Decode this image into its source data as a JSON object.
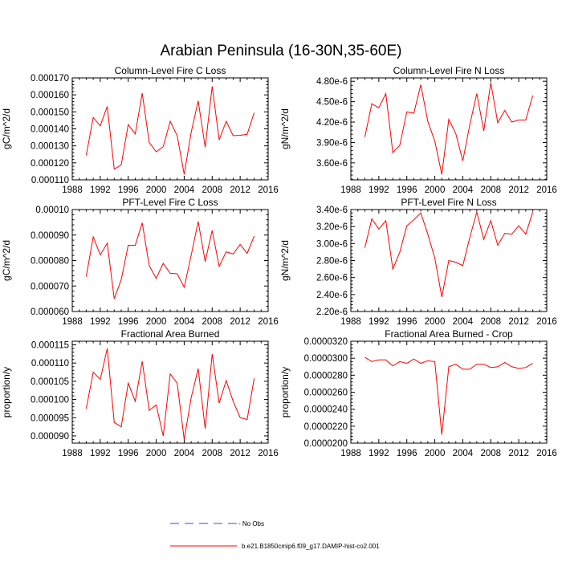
{
  "figure": {
    "title": "Arabian Peninsula (16-30N,35-60E)"
  },
  "legend": {
    "items": [
      {
        "label": "- No Obs",
        "color": "#4444cc",
        "style": "dashed"
      },
      {
        "label": "b.e21.B1850cmip6.f09_g17.DAMIP-hist-co2.001",
        "color": "#ff0000",
        "style": "solid"
      }
    ]
  },
  "chart_data": [
    {
      "type": "line",
      "title": "Column-Level Fire C Loss",
      "ylabel": "gC/m^2/d",
      "xlim": [
        1988,
        2016
      ],
      "xticks": [
        1988,
        1992,
        1996,
        2000,
        2004,
        2008,
        2012,
        2016
      ],
      "ylim": [
        0.00011,
        0.00017
      ],
      "yticks": [
        0.00011,
        0.00012,
        0.00013,
        0.00014,
        0.00015,
        0.00016,
        0.00017
      ],
      "ytick_labels": [
        "0.000110",
        "0.000120",
        "0.000130",
        "0.000140",
        "0.000150",
        "0.000160",
        "0.000170"
      ],
      "series": [
        {
          "color": "#ff0000",
          "x": [
            1990,
            1991,
            1992,
            1993,
            1994,
            1995,
            1996,
            1997,
            1998,
            1999,
            2000,
            2001,
            2002,
            2003,
            2004,
            2005,
            2006,
            2007,
            2008,
            2009,
            2010,
            2011,
            2012,
            2013,
            2014
          ],
          "y": [
            0.0001245,
            0.0001467,
            0.0001418,
            0.0001532,
            0.0001163,
            0.0001188,
            0.0001425,
            0.000137,
            0.000161,
            0.000132,
            0.0001265,
            0.0001295,
            0.0001445,
            0.000136,
            0.0001132,
            0.000138,
            0.0001565,
            0.0001292,
            0.000165,
            0.0001335,
            0.0001445,
            0.000136,
            0.0001362,
            0.0001368,
            0.0001495
          ]
        }
      ]
    },
    {
      "type": "line",
      "title": "Column-Level Fire N Loss",
      "ylabel": "gN/m^2/d",
      "xlim": [
        1988,
        2016
      ],
      "xticks": [
        1988,
        1992,
        1996,
        2000,
        2004,
        2008,
        2012,
        2016
      ],
      "ylim": [
        3.35e-06,
        4.85e-06
      ],
      "yticks": [
        3.6e-06,
        3.9e-06,
        4.2e-06,
        4.5e-06,
        4.8e-06
      ],
      "ytick_labels": [
        "3.60e-6",
        "3.90e-6",
        "4.20e-6",
        "4.50e-6",
        "4.80e-6"
      ],
      "series": [
        {
          "color": "#ff0000",
          "x": [
            1990,
            1991,
            1992,
            1993,
            1994,
            1995,
            1996,
            1997,
            1998,
            1999,
            2000,
            2001,
            2002,
            2003,
            2004,
            2005,
            2006,
            2007,
            2008,
            2009,
            2010,
            2011,
            2012,
            2013,
            2014
          ],
          "y": [
            3.98e-06,
            4.47e-06,
            4.41e-06,
            4.62e-06,
            3.75e-06,
            3.86e-06,
            4.35e-06,
            4.33e-06,
            4.75e-06,
            4.21e-06,
            3.92e-06,
            3.43e-06,
            4.24e-06,
            4.03e-06,
            3.63e-06,
            4.16e-06,
            4.62e-06,
            4.07e-06,
            4.78e-06,
            4.19e-06,
            4.37e-06,
            4.2e-06,
            4.23e-06,
            4.23e-06,
            4.59e-06
          ]
        }
      ]
    },
    {
      "type": "line",
      "title": "PFT-Level Fire C Loss",
      "ylabel": "gC/m^2/d",
      "xlim": [
        1988,
        2016
      ],
      "xticks": [
        1988,
        1992,
        1996,
        2000,
        2004,
        2008,
        2012,
        2016
      ],
      "ylim": [
        6e-05,
        0.0001
      ],
      "yticks": [
        6e-05,
        7e-05,
        8e-05,
        9e-05,
        0.0001
      ],
      "ytick_labels": [
        "0.000060",
        "0.000070",
        "0.000080",
        "0.000090",
        "0.00010"
      ],
      "series": [
        {
          "color": "#ff0000",
          "x": [
            1990,
            1991,
            1992,
            1993,
            1994,
            1995,
            1996,
            1997,
            1998,
            1999,
            2000,
            2001,
            2002,
            2003,
            2004,
            2005,
            2006,
            2007,
            2008,
            2009,
            2010,
            2011,
            2012,
            2013,
            2014
          ],
          "y": [
            7.37e-05,
            8.93e-05,
            8.22e-05,
            8.68e-05,
            6.5e-05,
            7.25e-05,
            8.6e-05,
            8.6e-05,
            9.48e-05,
            7.8e-05,
            7.3e-05,
            7.89e-05,
            7.5e-05,
            7.48e-05,
            6.95e-05,
            8.21e-05,
            9.53e-05,
            7.96e-05,
            9.18e-05,
            7.77e-05,
            8.34e-05,
            8.26e-05,
            8.63e-05,
            8.28e-05,
            8.96e-05
          ]
        }
      ]
    },
    {
      "type": "line",
      "title": "PFT-Level Fire N Loss",
      "ylabel": "gN/m^2/d",
      "xlim": [
        1988,
        2016
      ],
      "xticks": [
        1988,
        1992,
        1996,
        2000,
        2004,
        2008,
        2012,
        2016
      ],
      "ylim": [
        2.2e-06,
        3.4e-06
      ],
      "yticks": [
        2.2e-06,
        2.4e-06,
        2.6e-06,
        2.8e-06,
        3e-06,
        3.2e-06,
        3.4e-06
      ],
      "ytick_labels": [
        "2.20e-6",
        "2.40e-6",
        "2.60e-6",
        "2.80e-6",
        "3.00e-6",
        "3.20e-6",
        "3.40e-6"
      ],
      "series": [
        {
          "color": "#ff0000",
          "x": [
            1990,
            1991,
            1992,
            1993,
            1994,
            1995,
            1996,
            1997,
            1998,
            1999,
            2000,
            2001,
            2002,
            2003,
            2004,
            2005,
            2006,
            2007,
            2008,
            2009,
            2010,
            2011,
            2012,
            2013,
            2014
          ],
          "y": [
            2.95e-06,
            3.29e-06,
            3.17e-06,
            3.27e-06,
            2.7e-06,
            2.9e-06,
            3.21e-06,
            3.28e-06,
            3.36e-06,
            3.11e-06,
            2.83e-06,
            2.37e-06,
            2.8e-06,
            2.78e-06,
            2.74e-06,
            3.07e-06,
            3.37e-06,
            3.05e-06,
            3.27e-06,
            2.98e-06,
            3.12e-06,
            3.11e-06,
            3.21e-06,
            3.11e-06,
            3.37e-06
          ]
        }
      ]
    },
    {
      "type": "line",
      "title": "Fractional Area Burned",
      "ylabel": "proportion/y",
      "xlim": [
        1988,
        2016
      ],
      "xticks": [
        1988,
        1992,
        1996,
        2000,
        2004,
        2008,
        2012,
        2016
      ],
      "ylim": [
        8.8e-05,
        0.000116
      ],
      "yticks": [
        9e-05,
        9.5e-05,
        0.0001,
        0.000105,
        0.00011,
        0.000115
      ],
      "ytick_labels": [
        "0.000090",
        "0.000095",
        "0.000100",
        "0.000105",
        "0.000110",
        "0.000115"
      ],
      "series": [
        {
          "color": "#ff0000",
          "x": [
            1990,
            1991,
            1992,
            1993,
            1994,
            1995,
            1996,
            1997,
            1998,
            1999,
            2000,
            2001,
            2002,
            2003,
            2004,
            2005,
            2006,
            2007,
            2008,
            2009,
            2010,
            2011,
            2012,
            2013,
            2014
          ],
          "y": [
            9.75e-05,
            0.0001075,
            0.0001055,
            0.000114,
            9.37e-05,
            9.25e-05,
            0.0001045,
            9.95e-05,
            0.0001105,
            9.7e-05,
            9.85e-05,
            9e-05,
            0.000107,
            0.0001045,
            8.9e-05,
            0.0001005,
            0.0001085,
            9.2e-05,
            0.0001125,
            9.9e-05,
            0.0001052,
            9.95e-05,
            9.5e-05,
            9.45e-05,
            0.0001058
          ]
        }
      ]
    },
    {
      "type": "line",
      "title": "Fractional Area Burned - Crop",
      "ylabel": "proportion/y",
      "xlim": [
        1988,
        2016
      ],
      "xticks": [
        1988,
        1992,
        1996,
        2000,
        2004,
        2008,
        2012,
        2016
      ],
      "ylim": [
        2e-05,
        3.2e-05
      ],
      "yticks": [
        2e-05,
        2.2e-05,
        2.4e-05,
        2.6e-05,
        2.8e-05,
        3e-05,
        3.2e-05
      ],
      "ytick_labels": [
        "0.0000200",
        "0.0000220",
        "0.0000240",
        "0.0000260",
        "0.0000280",
        "0.0000300",
        "0.0000320"
      ],
      "series": [
        {
          "color": "#ff0000",
          "x": [
            1990,
            1991,
            1992,
            1993,
            1994,
            1995,
            1996,
            1997,
            1998,
            1999,
            2000,
            2001,
            2002,
            2003,
            2004,
            2005,
            2006,
            2007,
            2008,
            2009,
            2010,
            2011,
            2012,
            2013,
            2014
          ],
          "y": [
            3.01e-05,
            2.96e-05,
            2.98e-05,
            2.98e-05,
            2.91e-05,
            2.96e-05,
            2.94e-05,
            2.99e-05,
            2.94e-05,
            2.97e-05,
            2.96e-05,
            2.1e-05,
            2.9e-05,
            2.93e-05,
            2.87e-05,
            2.87e-05,
            2.93e-05,
            2.93e-05,
            2.89e-05,
            2.9e-05,
            2.95e-05,
            2.9e-05,
            2.88e-05,
            2.89e-05,
            2.94e-05
          ]
        }
      ]
    }
  ]
}
